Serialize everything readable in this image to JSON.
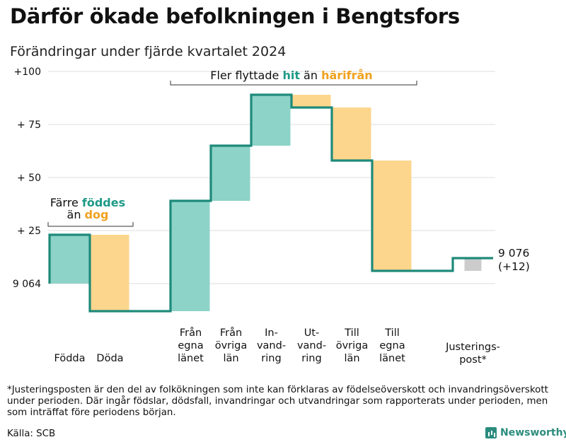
{
  "title": "Därför ökade befolkningen i Bengtsfors",
  "subtitle": "Förändringar under fjärde kvartalet 2024",
  "chart_data": {
    "type": "waterfall",
    "base_value": 9064,
    "end_value": 9076,
    "ylim": [
      -13,
      100
    ],
    "y_ticks": [
      {
        "value": 0,
        "label": "9 064"
      },
      {
        "value": 25,
        "label": "+ 25"
      },
      {
        "value": 50,
        "label": "+ 50"
      },
      {
        "value": 75,
        "label": "+ 75"
      },
      {
        "value": 100,
        "label": "+100"
      }
    ],
    "steps": [
      {
        "label": [
          "Födda"
        ],
        "start": 0,
        "end": 23,
        "kind": "in"
      },
      {
        "label": [
          "Döda"
        ],
        "start": 23,
        "end": -13,
        "kind": "out"
      },
      {
        "label": [
          "Från",
          "egna",
          "länet"
        ],
        "start": -13,
        "end": 39,
        "kind": "in"
      },
      {
        "label": [
          "Från",
          "övriga",
          "län"
        ],
        "start": 39,
        "end": 65,
        "kind": "in"
      },
      {
        "label": [
          "In-",
          "vand-",
          "ring"
        ],
        "start": 65,
        "end": 89,
        "kind": "in"
      },
      {
        "label": [
          "Ut-",
          "vand-",
          "ring"
        ],
        "start": 89,
        "end": 83,
        "kind": "out"
      },
      {
        "label": [
          "Till",
          "övriga",
          "län"
        ],
        "start": 83,
        "end": 58,
        "kind": "out"
      },
      {
        "label": [
          "Till",
          "egna",
          "länet"
        ],
        "start": 58,
        "end": 6,
        "kind": "out"
      },
      {
        "label": [
          "Justerings-",
          "post*"
        ],
        "start": 6,
        "end": 12,
        "kind": "adjust"
      }
    ],
    "end_label": {
      "line1": "9 076",
      "line2": "(+12)"
    },
    "annotations": [
      {
        "parts": [
          {
            "text": "Fler flyttade ",
            "style": "plain"
          },
          {
            "text": "hit",
            "style": "in"
          },
          {
            "text": " än ",
            "style": "plain"
          },
          {
            "text": "härifrån",
            "style": "out"
          }
        ]
      },
      {
        "line1": [
          {
            "text": "Färre ",
            "style": "plain"
          },
          {
            "text": "föddes",
            "style": "in"
          }
        ],
        "line2": [
          {
            "text": "än ",
            "style": "plain"
          },
          {
            "text": "dog",
            "style": "out"
          }
        ]
      }
    ],
    "colors": {
      "in": "#8dd3c8",
      "out": "#fdd68d",
      "adjust": "#cccccc",
      "line": "#1e8a7a",
      "in_text": "#1e9a88",
      "out_text": "#f0a11f",
      "grid": "#e3e3e3"
    }
  },
  "footnote": "*Justeringsposten är den del av folkökningen som inte kan förklaras av födelseöverskott och invandringsöverskott under perioden. Där ingår födslar, dödsfall, invandringar och utvandringar som rapporterats under perioden, men som inträffat före periodens början.",
  "source": "Källa: SCB",
  "brand": "Newsworthy"
}
